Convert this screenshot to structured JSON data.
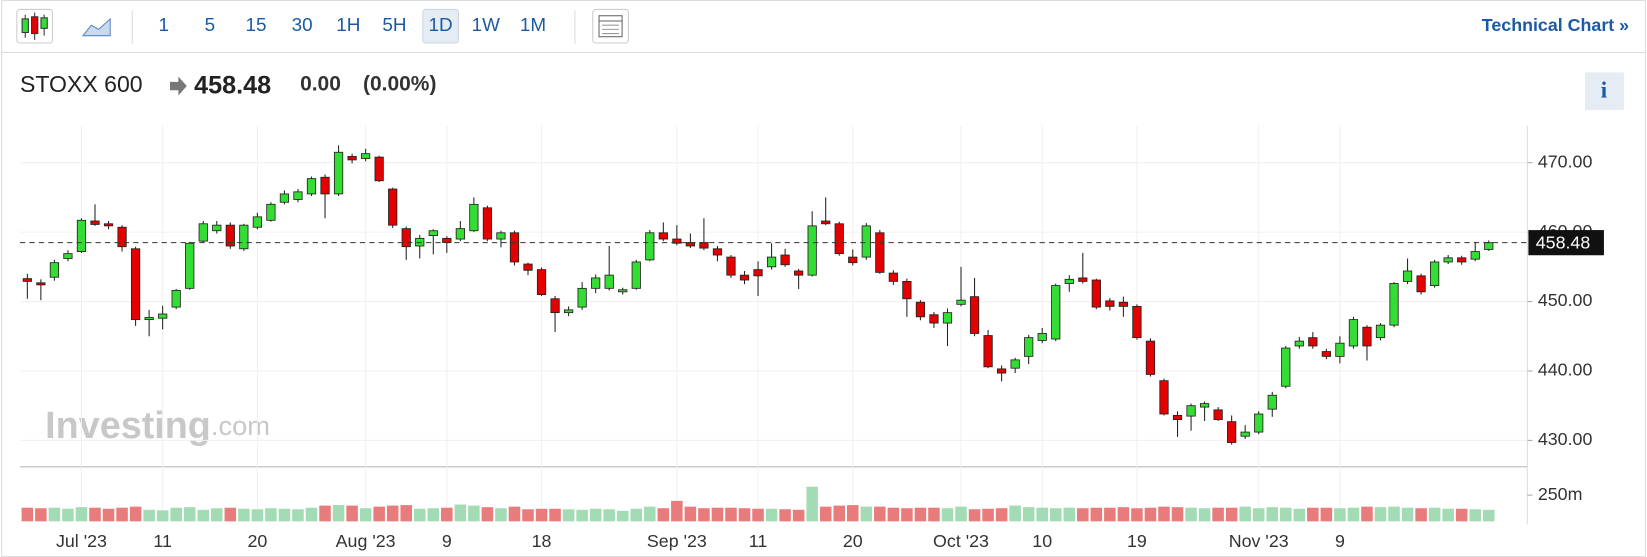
{
  "toolbar": {
    "intervals": [
      "1",
      "5",
      "15",
      "30",
      "1H",
      "5H",
      "1D",
      "1W",
      "1M"
    ],
    "selected": "1D",
    "link": "Technical Chart »"
  },
  "header": {
    "symbol": "STOXX 600",
    "price": 458.48,
    "change": "0.00",
    "change_percent": "(0.00%)",
    "info": "i"
  },
  "watermark": {
    "brand": "Investing",
    "suffix": ".com"
  },
  "chart_data": {
    "type": "candlestick",
    "categories": [
      null,
      null,
      null,
      null,
      "Jul '23",
      null,
      null,
      null,
      null,
      null,
      "11",
      null,
      null,
      null,
      null,
      null,
      null,
      "20",
      null,
      null,
      null,
      null,
      null,
      null,
      null,
      "Aug '23",
      null,
      null,
      null,
      null,
      null,
      "9",
      null,
      null,
      null,
      null,
      null,
      null,
      "18",
      null,
      null,
      null,
      null,
      null,
      null,
      null,
      null,
      null,
      "Sep '23",
      null,
      null,
      null,
      null,
      null,
      "11",
      null,
      null,
      null,
      null,
      null,
      null,
      "20",
      null,
      null,
      null,
      null,
      null,
      null,
      null,
      "Oct '23",
      null,
      null,
      null,
      null,
      null,
      "10",
      null,
      null,
      null,
      null,
      null,
      null,
      "19",
      null,
      null,
      null,
      null,
      null,
      null,
      null,
      null,
      "Nov '23",
      null,
      null,
      null,
      null,
      null,
      "9",
      null,
      null,
      null,
      null,
      null,
      null,
      null,
      null,
      null,
      null,
      null
    ],
    "open": [
      453.3,
      452.7,
      453.5,
      456.2,
      457.2,
      461.6,
      461.2,
      460.7,
      457.6,
      447.4,
      447.6,
      449.2,
      451.9,
      458.7,
      460.2,
      461.0,
      457.6,
      460.7,
      461.7,
      464.3,
      464.7,
      465.5,
      467.9,
      465.5,
      470.9,
      470.6,
      470.8,
      466.2,
      460.5,
      458.0,
      459.5,
      459.1,
      459.0,
      460.2,
      463.5,
      459.0,
      459.9,
      455.4,
      454.6,
      450.4,
      448.4,
      449.2,
      451.9,
      451.9,
      451.4,
      451.9,
      456.0,
      459.9,
      459.0,
      458.5,
      458.5,
      457.6,
      456.4,
      453.8,
      454.6,
      455.0,
      456.7,
      454.4,
      453.8,
      461.6,
      461.2,
      456.4,
      456.4,
      459.9,
      454.1,
      452.9,
      449.9,
      448.1,
      446.9,
      449.6,
      450.7,
      445.1,
      440.3,
      440.4,
      442.1,
      444.4,
      444.6,
      452.6,
      453.4,
      453.1,
      450.1,
      449.9,
      449.3,
      444.3,
      438.6,
      433.6,
      433.5,
      434.8,
      434.4,
      432.7,
      430.6,
      431.2,
      434.5,
      437.8,
      443.6,
      444.8,
      442.8,
      442.1,
      443.6,
      446.3,
      444.8,
      446.6,
      452.9,
      453.7,
      452.3,
      455.7,
      456.3,
      456.1,
      457.5
    ],
    "high": [
      454.0,
      453.2,
      456.0,
      457.4,
      462.0,
      464.0,
      461.6,
      461.0,
      457.9,
      448.8,
      449.4,
      451.8,
      458.6,
      461.6,
      461.6,
      461.4,
      461.2,
      462.8,
      464.3,
      466.0,
      466.2,
      468.0,
      468.3,
      472.5,
      471.3,
      472.0,
      471.0,
      466.4,
      460.8,
      459.6,
      460.4,
      459.4,
      461.6,
      465.0,
      463.8,
      460.2,
      460.2,
      455.6,
      454.9,
      450.8,
      449.3,
      452.8,
      453.9,
      458.0,
      452.0,
      456.0,
      460.3,
      461.4,
      461.0,
      459.8,
      462.0,
      458.0,
      456.7,
      454.4,
      455.8,
      458.4,
      457.6,
      454.7,
      463.0,
      465.0,
      461.5,
      457.5,
      461.3,
      460.3,
      454.5,
      453.3,
      450.2,
      448.5,
      449.0,
      455.0,
      453.4,
      445.9,
      440.8,
      441.9,
      445.2,
      446.2,
      452.6,
      453.8,
      457.0,
      453.3,
      450.5,
      450.7,
      449.6,
      444.7,
      438.9,
      434.2,
      435.3,
      435.6,
      434.8,
      433.6,
      432.2,
      434.2,
      437.0,
      443.6,
      444.9,
      445.6,
      443.2,
      445.0,
      447.8,
      446.6,
      446.9,
      452.8,
      456.2,
      454.0,
      456.0,
      456.7,
      456.6,
      458.6,
      458.8
    ],
    "low": [
      450.4,
      450.2,
      453.0,
      455.8,
      457.0,
      460.9,
      460.4,
      457.2,
      446.5,
      445.0,
      446.0,
      448.9,
      451.7,
      458.5,
      459.8,
      457.6,
      457.3,
      460.4,
      461.5,
      464.0,
      464.3,
      465.2,
      462.0,
      465.2,
      469.9,
      470.2,
      467.2,
      460.6,
      456.0,
      456.2,
      456.8,
      457.0,
      458.7,
      460.0,
      458.7,
      457.8,
      455.2,
      453.8,
      450.8,
      445.6,
      447.9,
      448.8,
      451.2,
      451.6,
      451.0,
      451.7,
      455.8,
      458.7,
      458.1,
      457.7,
      457.4,
      455.8,
      453.4,
      452.5,
      450.8,
      454.6,
      455.0,
      451.8,
      453.6,
      461.0,
      456.6,
      455.2,
      456.0,
      454.0,
      452.4,
      447.8,
      447.3,
      446.2,
      443.6,
      449.3,
      445.0,
      440.4,
      438.5,
      439.7,
      441.0,
      444.0,
      444.3,
      451.4,
      452.6,
      448.9,
      448.7,
      447.8,
      444.5,
      439.2,
      433.6,
      430.5,
      431.4,
      432.8,
      432.8,
      429.4,
      430.2,
      430.9,
      433.4,
      437.5,
      443.2,
      443.2,
      441.7,
      441.1,
      443.2,
      441.5,
      444.4,
      446.3,
      452.5,
      451.0,
      452.0,
      455.4,
      455.3,
      455.8,
      457.3
    ],
    "close": [
      452.9,
      452.4,
      455.6,
      456.9,
      461.7,
      461.1,
      460.9,
      457.9,
      447.4,
      447.7,
      448.2,
      451.6,
      458.4,
      461.2,
      461.0,
      458.0,
      461.0,
      462.2,
      464.0,
      465.5,
      465.8,
      467.7,
      465.5,
      471.5,
      470.4,
      471.3,
      467.4,
      461.0,
      457.9,
      459.1,
      460.2,
      458.5,
      460.5,
      464.0,
      459.0,
      459.9,
      455.7,
      454.5,
      451.0,
      448.4,
      448.8,
      451.9,
      453.4,
      453.8,
      451.7,
      455.7,
      459.9,
      459.0,
      458.4,
      458.0,
      457.7,
      456.7,
      453.8,
      453.1,
      453.7,
      456.4,
      455.3,
      453.8,
      460.9,
      461.2,
      456.9,
      455.6,
      460.9,
      454.2,
      452.9,
      450.4,
      447.8,
      446.9,
      448.4,
      450.2,
      445.4,
      440.6,
      439.7,
      441.6,
      444.8,
      445.4,
      452.3,
      453.2,
      452.9,
      449.2,
      449.3,
      449.3,
      444.8,
      439.5,
      433.8,
      433.0,
      435.0,
      435.3,
      433.0,
      429.7,
      431.2,
      433.8,
      436.5,
      443.3,
      444.3,
      443.6,
      442.1,
      444.0,
      447.4,
      443.6,
      446.6,
      452.6,
      454.4,
      451.4,
      455.7,
      456.3,
      455.7,
      457.2,
      458.48
    ],
    "up_color": "#33dd33",
    "down_color": "#e50000",
    "last_price": 458.48,
    "ylim": [
      426.2,
      475.3
    ],
    "yticks": [
      {
        "value": 430,
        "label": "430.00"
      },
      {
        "value": 440,
        "label": "440.00"
      },
      {
        "value": 450,
        "label": "450.00"
      },
      {
        "value": 460,
        "label": "460.00"
      },
      {
        "value": 470,
        "label": "470.00"
      }
    ],
    "grid": true,
    "volume": {
      "values": [
        130,
        125,
        130,
        120,
        135,
        130,
        120,
        130,
        140,
        110,
        105,
        130,
        135,
        110,
        125,
        130,
        120,
        115,
        125,
        120,
        115,
        130,
        150,
        155,
        150,
        125,
        140,
        150,
        155,
        120,
        125,
        130,
        160,
        150,
        135,
        125,
        140,
        115,
        120,
        120,
        115,
        110,
        120,
        115,
        100,
        120,
        140,
        125,
        195,
        140,
        125,
        130,
        130,
        125,
        120,
        120,
        115,
        110,
        330,
        140,
        150,
        155,
        140,
        140,
        130,
        125,
        130,
        130,
        125,
        140,
        115,
        120,
        125,
        150,
        135,
        130,
        125,
        130,
        125,
        130,
        130,
        135,
        125,
        130,
        140,
        135,
        130,
        125,
        130,
        130,
        140,
        125,
        135,
        130,
        120,
        130,
        130,
        125,
        130,
        140,
        135,
        140,
        130,
        125,
        130,
        120,
        120,
        115,
        110
      ],
      "up_color": "#a3dbb4",
      "down_color": "#e87c7c",
      "ylim": [
        0,
        500
      ],
      "yticks": [
        {
          "value": 250,
          "label": "250m"
        }
      ]
    }
  }
}
